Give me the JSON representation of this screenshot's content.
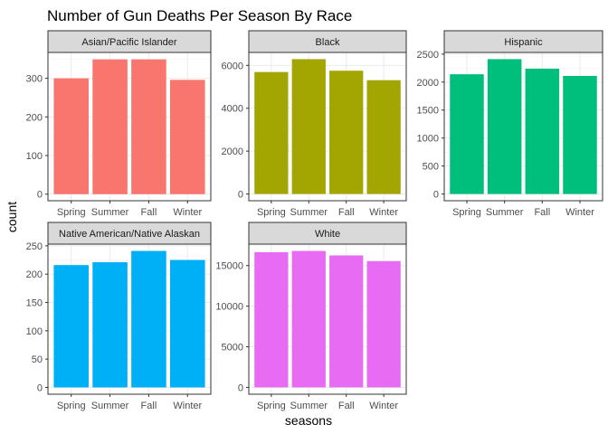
{
  "chart_data": {
    "type": "bar",
    "title": "Number of Gun Deaths Per Season By Race",
    "xlabel": "seasons",
    "ylabel": "count",
    "categories": [
      "Spring",
      "Summer",
      "Fall",
      "Winter"
    ],
    "grid": true,
    "facets": [
      {
        "name": "Asian/Pacific Islander",
        "color": "#F8766D",
        "values": [
          300,
          349,
          349,
          296
        ],
        "ylim": [
          -17,
          367
        ],
        "yticks": [
          0,
          100,
          200,
          300
        ]
      },
      {
        "name": "Black",
        "color": "#A3A500",
        "values": [
          5690,
          6290,
          5750,
          5310
        ],
        "ylim": [
          -314,
          6604
        ],
        "yticks": [
          0,
          2000,
          4000,
          6000
        ]
      },
      {
        "name": "Hispanic",
        "color": "#00BF7D",
        "values": [
          2140,
          2410,
          2240,
          2110
        ],
        "ylim": [
          -120,
          2530
        ],
        "yticks": [
          0,
          500,
          1000,
          1500,
          2000,
          2500
        ]
      },
      {
        "name": "Native American/Native Alaskan",
        "color": "#00B0F6",
        "values": [
          216,
          221,
          241,
          225
        ],
        "ylim": [
          -12,
          253
        ],
        "yticks": [
          0,
          50,
          100,
          150,
          200,
          250
        ]
      },
      {
        "name": "White",
        "color": "#E76BF3",
        "values": [
          16650,
          16800,
          16250,
          15550
        ],
        "ylim": [
          -840,
          17640
        ],
        "yticks": [
          0,
          5000,
          10000,
          15000
        ]
      }
    ]
  }
}
